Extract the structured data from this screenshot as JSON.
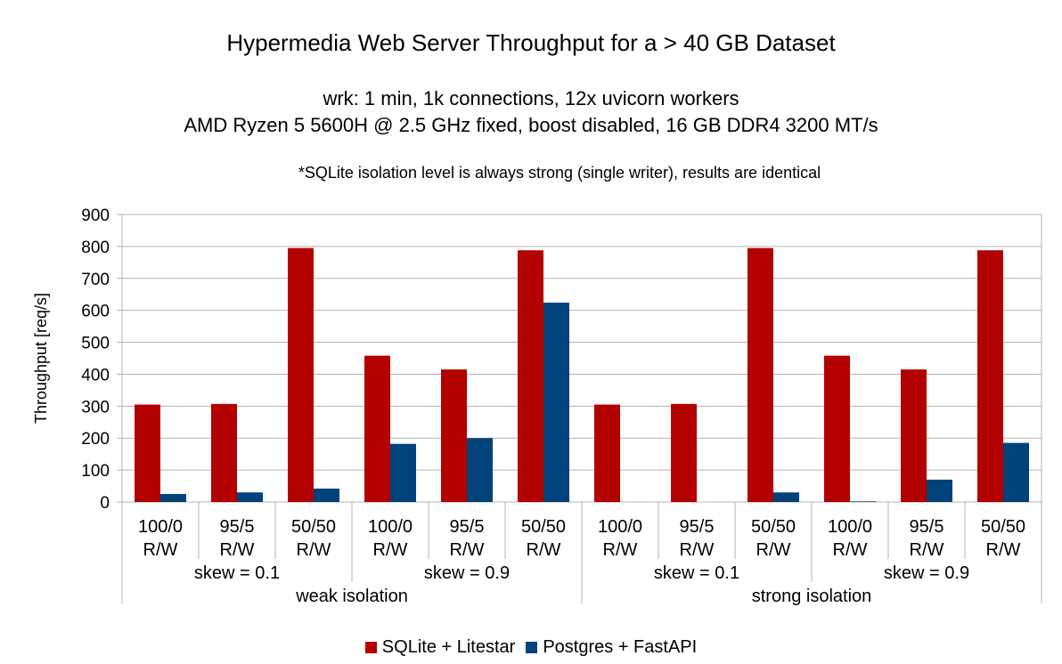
{
  "chart_data": {
    "type": "bar",
    "title": "Hypermedia Web Server Throughput for a > 40 GB Dataset",
    "subtitle_lines": [
      "wrk: 1 min, 1k connections, 12x uvicorn workers",
      "AMD Ryzen 5 5600H @ 2.5 GHz fixed, boost disabled, 16 GB DDR4 3200 MT/s"
    ],
    "note": "*SQLite isolation level is always strong (single writer), results are identical",
    "ylabel": "Throughput [req/s]",
    "ylim": [
      0,
      900
    ],
    "yticks": [
      0,
      100,
      200,
      300,
      400,
      500,
      600,
      700,
      800,
      900
    ],
    "grid": true,
    "legend_position": "bottom",
    "categories": [
      [
        "100/0",
        "R/W"
      ],
      [
        "95/5",
        "R/W"
      ],
      [
        "50/50",
        "R/W"
      ],
      [
        "100/0",
        "R/W"
      ],
      [
        "95/5",
        "R/W"
      ],
      [
        "50/50",
        "R/W"
      ],
      [
        "100/0",
        "R/W"
      ],
      [
        "95/5",
        "R/W"
      ],
      [
        "50/50",
        "R/W"
      ],
      [
        "100/0",
        "R/W"
      ],
      [
        "95/5",
        "R/W"
      ],
      [
        "50/50",
        "R/W"
      ]
    ],
    "skew_groups": [
      "skew = 0.1",
      "skew = 0.9",
      "skew = 0.1",
      "skew = 0.9"
    ],
    "isolation_groups": [
      "weak isolation",
      "strong isolation"
    ],
    "series": [
      {
        "name": "SQLite + Litestar",
        "color": "#b30000",
        "values": [
          305,
          307,
          795,
          458,
          415,
          788,
          305,
          307,
          795,
          458,
          415,
          788
        ]
      },
      {
        "name": "Postgres + FastAPI",
        "color": "#00427a",
        "values": [
          25,
          30,
          42,
          182,
          200,
          624,
          0,
          0,
          30,
          2,
          70,
          185
        ]
      }
    ]
  }
}
